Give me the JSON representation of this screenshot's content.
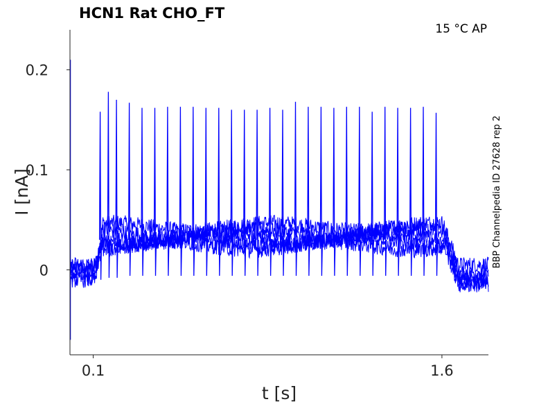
{
  "title": "HCN1  Rat  CHO_FT",
  "annotation": "15 °C  AP",
  "side_label": "BBP Channelpedia ID 27628 rep 2",
  "colors": {
    "trace": "#0000ff",
    "axis": "#222222",
    "text": "#000000"
  },
  "chart_data": {
    "type": "line",
    "title": "HCN1  Rat  CHO_FT",
    "xlabel": "t [s]",
    "ylabel": "I [nA]",
    "xlim": [
      0.0,
      1.8
    ],
    "ylim": [
      -0.085,
      0.24
    ],
    "xticks": [
      {
        "value": 0.1,
        "label": "0.1"
      },
      {
        "value": 1.6,
        "label": "1.6"
      }
    ],
    "yticks": [
      {
        "value": 0.0,
        "label": "0"
      },
      {
        "value": 0.1,
        "label": "0.1"
      },
      {
        "value": 0.2,
        "label": "0.2"
      }
    ],
    "grid": false,
    "stimulus": {
      "start": 0.11,
      "end": 1.61
    },
    "traces": {
      "count": 5,
      "baseline_before": [
        0.0,
        -0.005,
        0.005,
        -0.01,
        0.002
      ],
      "plateau": [
        0.043,
        0.037,
        0.032,
        0.028,
        0.024
      ],
      "baseline_after": [
        0.005,
        -0.003,
        -0.008,
        -0.012,
        -0.015
      ],
      "noise_amplitude": 0.008
    },
    "spikes": {
      "times": [
        0.13,
        0.165,
        0.2,
        0.255,
        0.31,
        0.365,
        0.42,
        0.475,
        0.53,
        0.585,
        0.64,
        0.695,
        0.75,
        0.805,
        0.86,
        0.915,
        0.97,
        1.025,
        1.08,
        1.135,
        1.19,
        1.245,
        1.3,
        1.355,
        1.41,
        1.465,
        1.52,
        1.575
      ],
      "peaks": [
        0.158,
        0.178,
        0.17,
        0.167,
        0.162,
        0.162,
        0.163,
        0.163,
        0.163,
        0.162,
        0.162,
        0.16,
        0.16,
        0.16,
        0.162,
        0.16,
        0.168,
        0.163,
        0.163,
        0.162,
        0.163,
        0.163,
        0.158,
        0.163,
        0.162,
        0.162,
        0.163,
        0.157
      ],
      "troughs": [
        -0.01,
        -0.008,
        -0.008,
        -0.006,
        -0.006,
        -0.006,
        -0.006,
        -0.006,
        -0.006,
        -0.006,
        -0.006,
        -0.006,
        -0.006,
        -0.006,
        -0.006,
        -0.006,
        -0.006,
        -0.006,
        -0.006,
        -0.006,
        -0.006,
        -0.006,
        -0.006,
        -0.006,
        -0.006,
        -0.006,
        -0.006,
        -0.006
      ]
    },
    "onset_artifact": {
      "time": 0.0,
      "max": 0.21,
      "min": -0.07
    }
  }
}
